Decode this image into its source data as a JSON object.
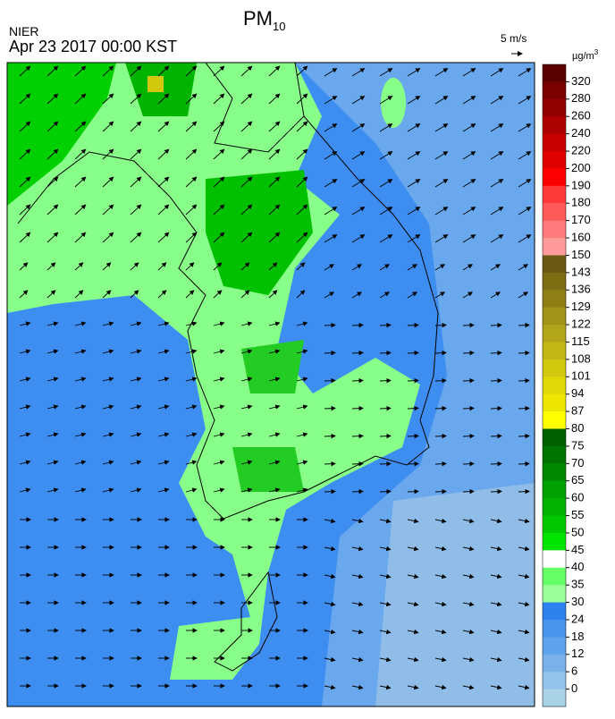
{
  "header": {
    "agency": "NIER",
    "title": {
      "main": "PM",
      "subscript": "10"
    },
    "timestamp": "Apr 23 2017 00:00 KST"
  },
  "wind_scale": {
    "label": "5 m/s"
  },
  "legend": {
    "unit": {
      "main": "µg/m",
      "superscript": "3"
    },
    "ticks": [
      320,
      280,
      260,
      240,
      220,
      200,
      190,
      180,
      170,
      160,
      150,
      143,
      136,
      129,
      122,
      115,
      108,
      101,
      94,
      87,
      80,
      75,
      70,
      65,
      60,
      55,
      50,
      45,
      40,
      35,
      30,
      24,
      18,
      12,
      6,
      0
    ],
    "colors": [
      "#5a0000",
      "#7a0000",
      "#930000",
      "#ad0000",
      "#c70000",
      "#e00000",
      "#ff0000",
      "#ff3a3a",
      "#ff5a5a",
      "#ff7a7a",
      "#ff9a9a",
      "#6b5b12",
      "#7d6e14",
      "#8f8016",
      "#a19318",
      "#b3a51a",
      "#c2b614",
      "#d2c80e",
      "#e1d808",
      "#eee600",
      "#ffff00",
      "#006000",
      "#007400",
      "#008a00",
      "#00a000",
      "#00b400",
      "#00c800",
      "#00e400",
      "#ffffff",
      "#66ff66",
      "#99ff99",
      "#2d82f0",
      "#4a93ec",
      "#5fa2ec",
      "#7ab1ea",
      "#93c2ea",
      "#a8d2e6"
    ]
  }
}
